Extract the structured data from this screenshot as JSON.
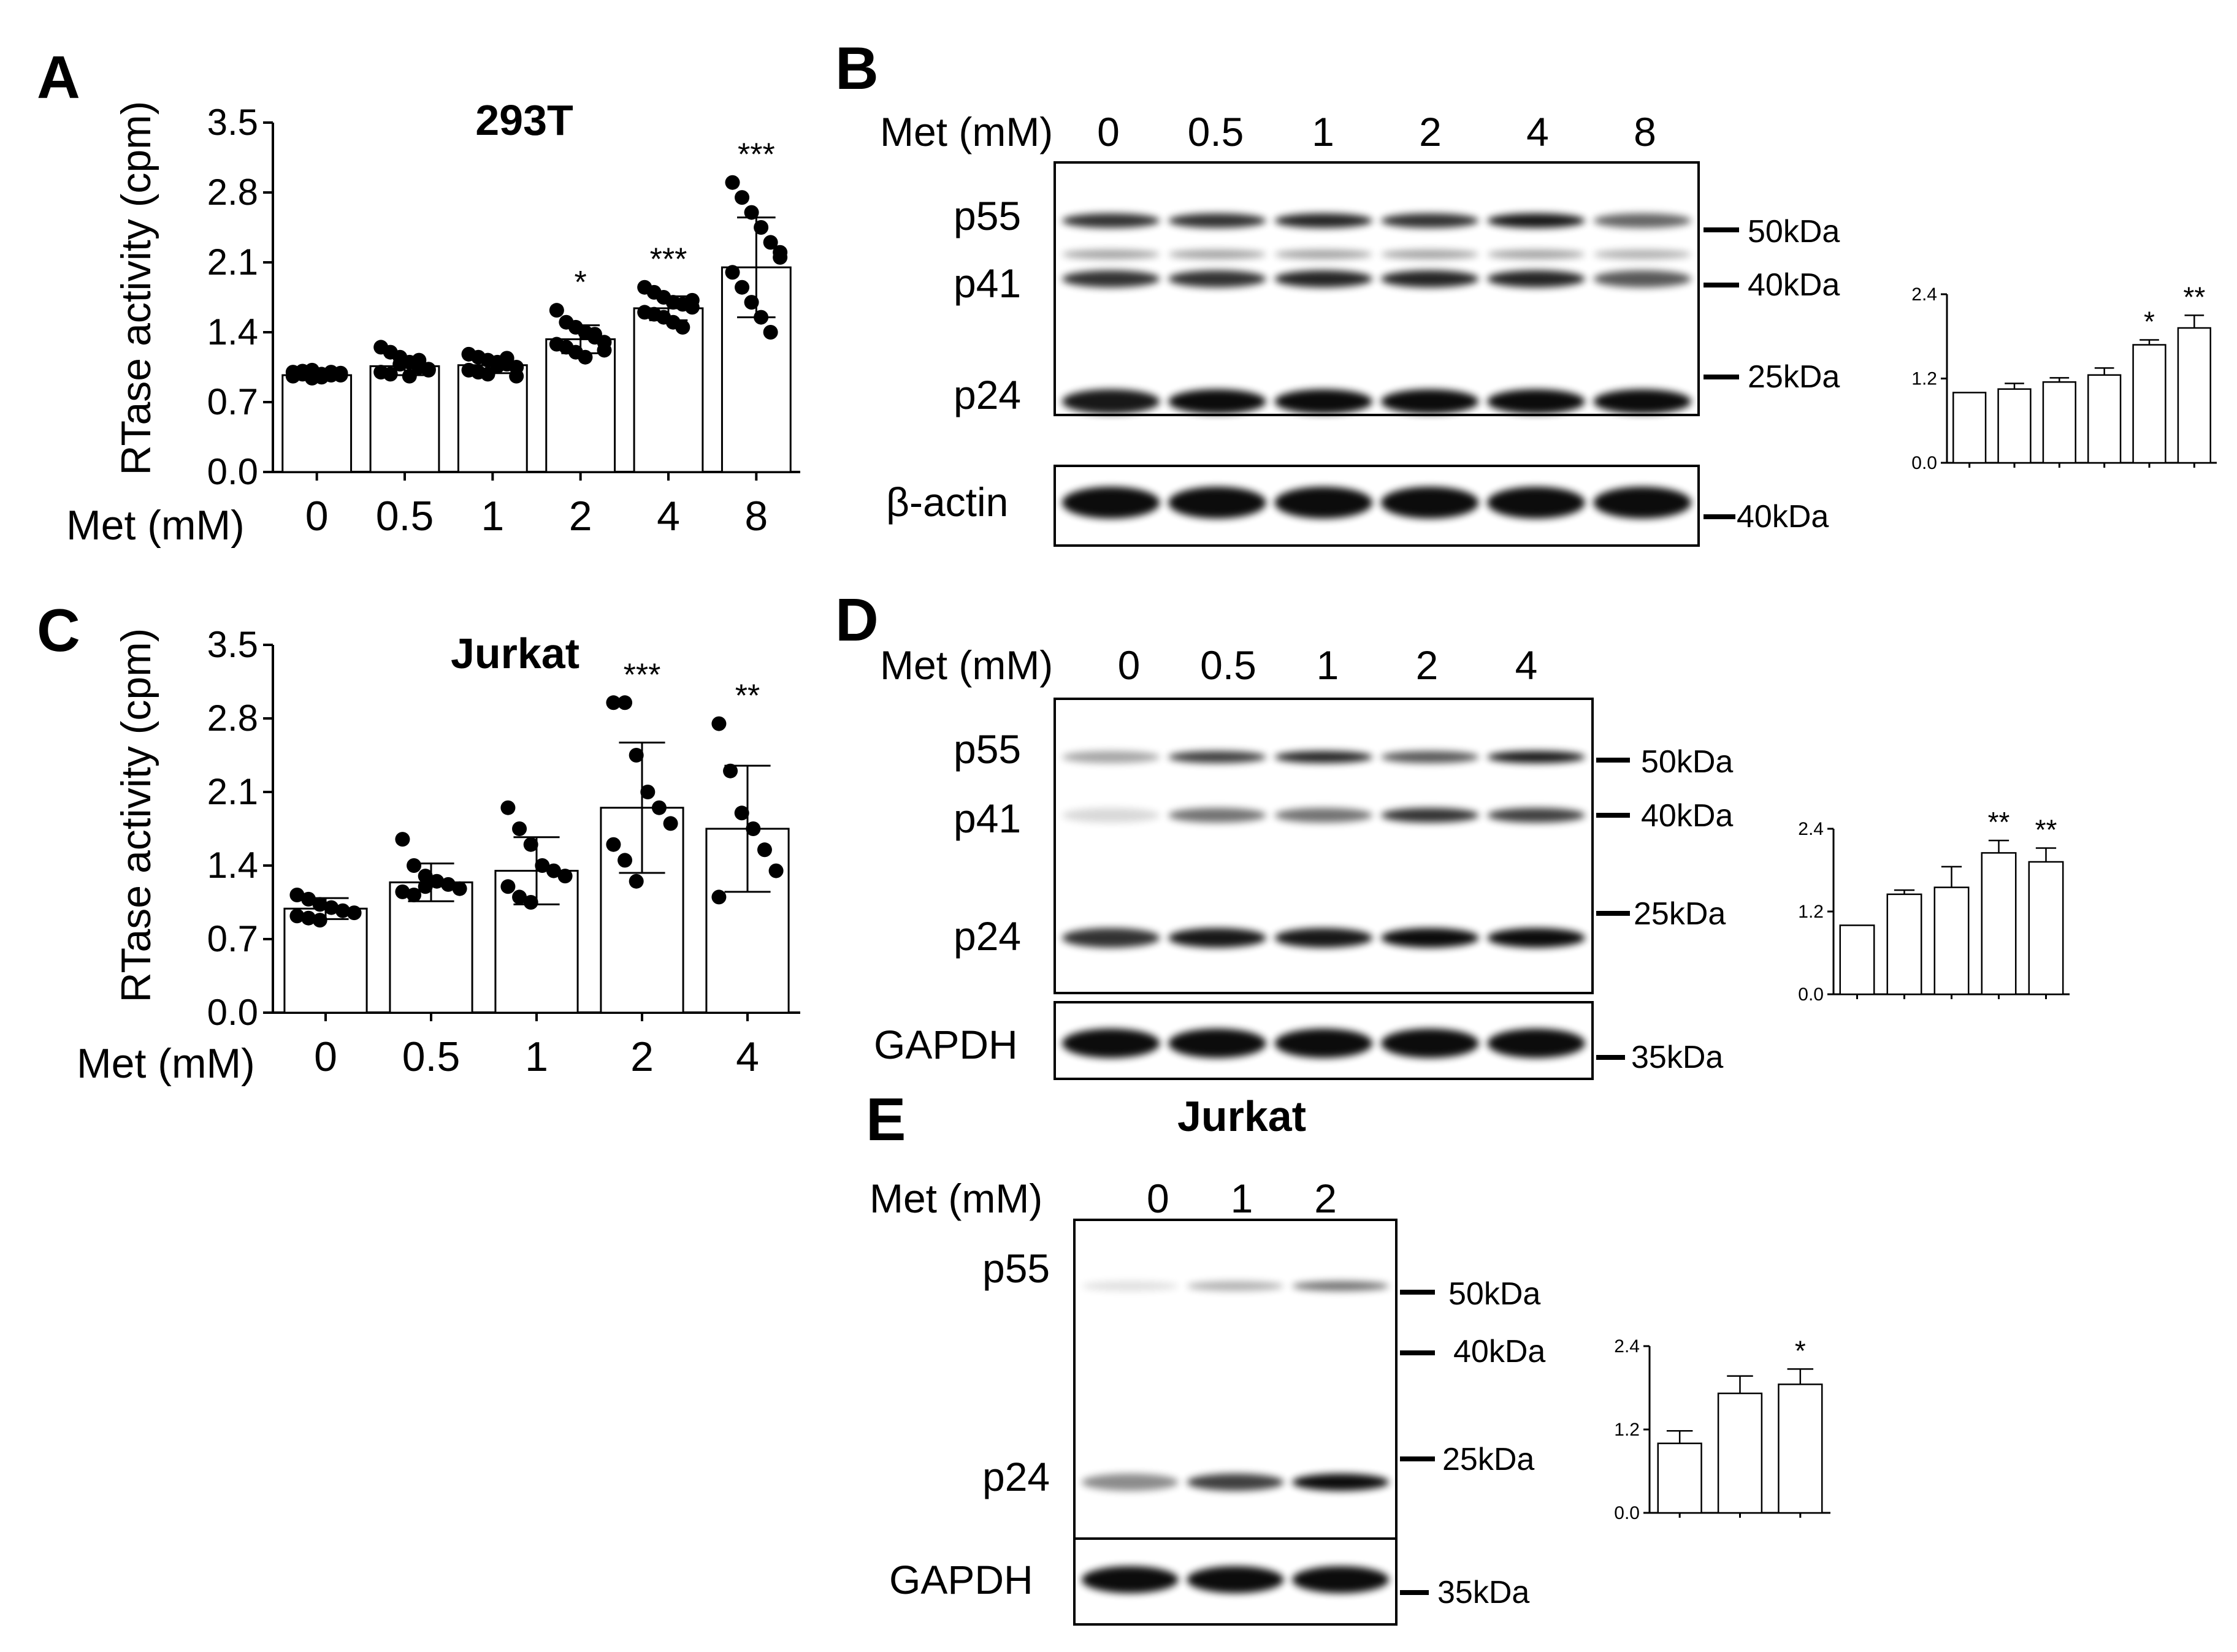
{
  "chart_data": [
    {
      "panel": "A",
      "type": "bar",
      "title": "293T",
      "ylabel": "RTase activity (cpm)",
      "xlabel": "Met (mM)",
      "categories": [
        "0",
        "0.5",
        "1",
        "2",
        "4",
        "8"
      ],
      "ylim": [
        0,
        3.5
      ],
      "yticks": [
        "0.0",
        "0.7",
        "1.4",
        "2.1",
        "2.8",
        "3.5"
      ],
      "values": [
        0.97,
        1.06,
        1.07,
        1.33,
        1.64,
        2.05
      ],
      "sd": [
        0.04,
        0.09,
        0.08,
        0.14,
        0.12,
        0.5
      ],
      "significance": [
        "",
        "",
        "",
        "*",
        "***",
        "***"
      ],
      "points": [
        [
          1.0,
          0.98,
          1.02,
          0.95,
          0.97,
          0.99,
          0.96,
          1.01,
          0.94,
          0.98,
          1.0,
          0.97
        ],
        [
          1.25,
          1.2,
          1.15,
          1.1,
          1.05,
          1.02,
          1.0,
          0.98,
          1.08,
          0.96,
          1.12,
          1.03
        ],
        [
          1.18,
          1.15,
          1.12,
          1.1,
          1.08,
          1.05,
          1.02,
          1.0,
          0.98,
          1.06,
          1.14,
          0.96
        ],
        [
          1.62,
          1.5,
          1.45,
          1.4,
          1.35,
          1.3,
          1.28,
          1.25,
          1.2,
          1.15,
          1.38,
          1.22
        ],
        [
          1.85,
          1.8,
          1.75,
          1.7,
          1.68,
          1.65,
          1.6,
          1.58,
          1.55,
          1.5,
          1.45,
          1.72
        ],
        [
          2.9,
          2.75,
          2.6,
          2.45,
          2.3,
          2.15,
          2.0,
          1.85,
          1.7,
          1.55,
          1.4,
          2.2
        ]
      ]
    },
    {
      "panel": "C",
      "type": "bar",
      "title": "Jurkat",
      "ylabel": "RTase activity (cpm)",
      "xlabel": "Met (mM)",
      "categories": [
        "0",
        "0.5",
        "1",
        "2",
        "4"
      ],
      "ylim": [
        0,
        3.5
      ],
      "yticks": [
        "0.0",
        "0.7",
        "1.4",
        "2.1",
        "2.8",
        "3.5"
      ],
      "values": [
        0.99,
        1.24,
        1.35,
        1.95,
        1.75
      ],
      "sd": [
        0.1,
        0.18,
        0.32,
        0.62,
        0.6
      ],
      "significance": [
        "",
        "",
        "",
        "***",
        "**"
      ],
      "points": [
        [
          1.12,
          1.08,
          1.03,
          1.0,
          0.97,
          0.95,
          0.92,
          0.9,
          0.88
        ],
        [
          1.65,
          1.4,
          1.3,
          1.25,
          1.22,
          1.18,
          1.15,
          1.12,
          1.2
        ],
        [
          1.95,
          1.75,
          1.6,
          1.4,
          1.35,
          1.3,
          1.2,
          1.1,
          1.05
        ],
        [
          2.95,
          2.95,
          2.45,
          2.1,
          1.95,
          1.8,
          1.6,
          1.45,
          1.25
        ],
        [
          2.75,
          2.3,
          1.9,
          1.75,
          1.55,
          1.35,
          1.1
        ]
      ]
    },
    {
      "panel": "B-quant",
      "type": "bar",
      "ylim": [
        0,
        2.4
      ],
      "yticks": [
        "0.0",
        "1.2",
        "2.4"
      ],
      "values": [
        1.0,
        1.05,
        1.15,
        1.25,
        1.68,
        1.92
      ],
      "sd": [
        0.0,
        0.08,
        0.06,
        0.1,
        0.07,
        0.18
      ],
      "significance": [
        "",
        "",
        "",
        "",
        "*",
        "**"
      ]
    },
    {
      "panel": "D-quant",
      "type": "bar",
      "ylim": [
        0,
        2.4
      ],
      "yticks": [
        "0.0",
        "1.2",
        "2.4"
      ],
      "values": [
        1.0,
        1.45,
        1.55,
        2.05,
        1.92
      ],
      "sd": [
        0.0,
        0.06,
        0.3,
        0.18,
        0.2
      ],
      "significance": [
        "",
        "",
        "",
        "**",
        "**"
      ]
    },
    {
      "panel": "E-quant",
      "type": "bar",
      "ylim": [
        0,
        2.4
      ],
      "yticks": [
        "0.0",
        "1.2",
        "2.4"
      ],
      "values": [
        1.0,
        1.72,
        1.85
      ],
      "sd": [
        0.18,
        0.25,
        0.22
      ],
      "significance": [
        "",
        "",
        "*"
      ]
    }
  ],
  "labels": {
    "A": "A",
    "B": "B",
    "C": "C",
    "D": "D",
    "E": "E",
    "blot_met": "Met (mM)",
    "p55": "p55",
    "p41": "p41",
    "p24": "p24",
    "actin": "β-actin",
    "gapdh": "GAPDH",
    "kda50": "50kDa",
    "kda40": "40kDa",
    "kda25": "25kDa",
    "kda35": "35kDa",
    "jurkat_e": "Jurkat"
  },
  "blots": {
    "B": {
      "lanes": [
        "0",
        "0.5",
        "1",
        "2",
        "4",
        "8"
      ]
    },
    "D": {
      "lanes": [
        "0",
        "0.5",
        "1",
        "2",
        "4"
      ]
    },
    "E": {
      "lanes": [
        "0",
        "1",
        "2"
      ]
    }
  }
}
